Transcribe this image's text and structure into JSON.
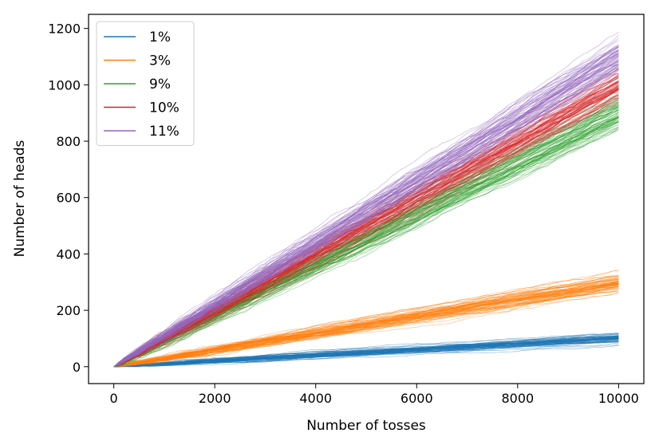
{
  "chart_data": {
    "type": "line",
    "xlabel": "Number of tosses",
    "ylabel": "Number of heads",
    "xlim": [
      -500,
      10500
    ],
    "ylim": [
      -60,
      1250
    ],
    "xticks": [
      0,
      2000,
      4000,
      6000,
      8000,
      10000
    ],
    "yticks": [
      0,
      200,
      400,
      600,
      800,
      1000,
      1200
    ],
    "grid": false,
    "legend_position": "top-left",
    "n_tosses": 10000,
    "series": [
      {
        "name": "1%",
        "probability": 0.01,
        "expected_end": 100,
        "end_range": [
          80,
          120
        ],
        "color": "#1f77b4"
      },
      {
        "name": "3%",
        "probability": 0.03,
        "expected_end": 300,
        "end_range": [
          270,
          330
        ],
        "color": "#ff7f0e"
      },
      {
        "name": "9%",
        "probability": 0.09,
        "expected_end": 900,
        "end_range": [
          830,
          960
        ],
        "color": "#2ca02c"
      },
      {
        "name": "10%",
        "probability": 0.1,
        "expected_end": 1000,
        "end_range": [
          940,
          1060
        ],
        "color": "#d62728"
      },
      {
        "name": "11%",
        "probability": 0.11,
        "expected_end": 1100,
        "end_range": [
          1040,
          1180
        ],
        "color": "#9467bd"
      }
    ]
  }
}
